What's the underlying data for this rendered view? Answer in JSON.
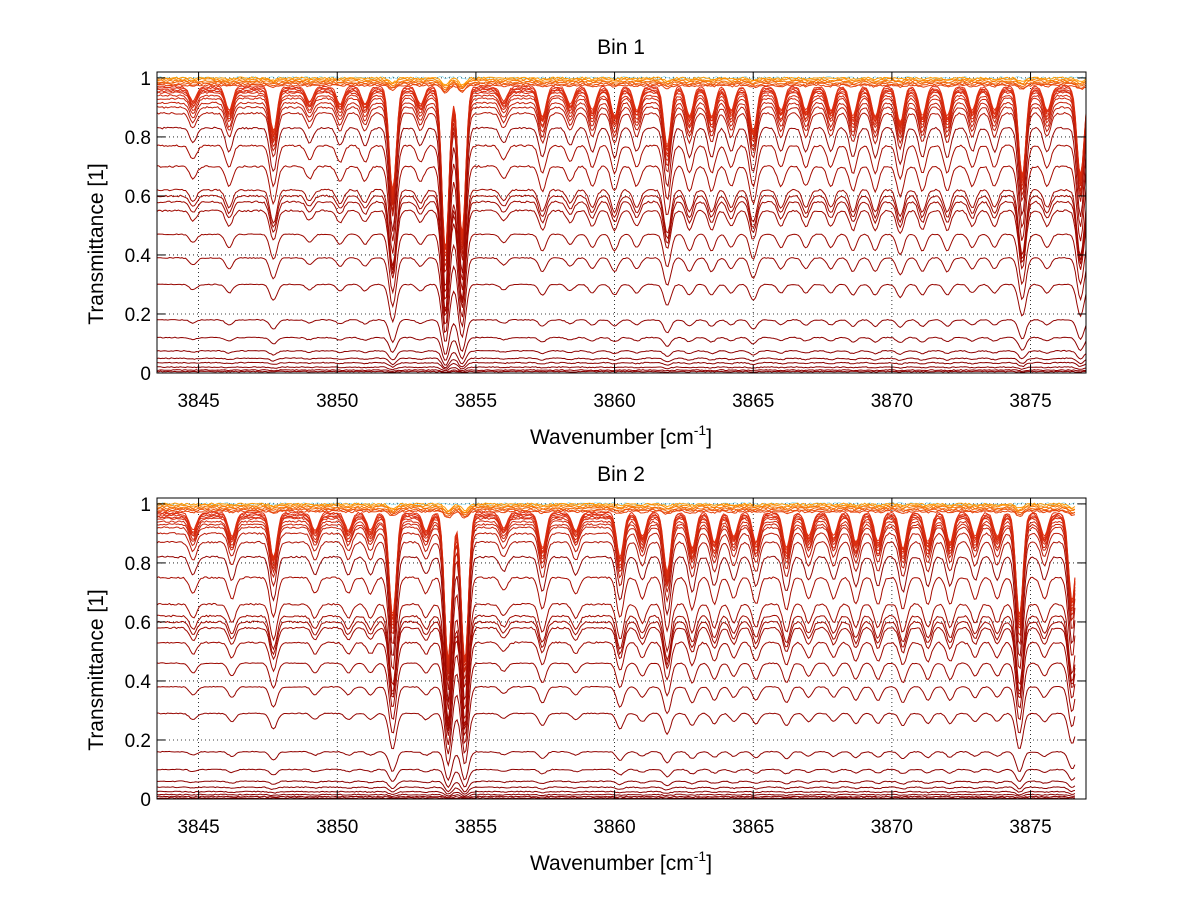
{
  "chart_data": [
    {
      "type": "line",
      "title": "Bin 1",
      "xlabel": "Wavenumber [cm",
      "xlabel_sup": "-1",
      "xlabel_end": "]",
      "ylabel": "Transmittance [1]",
      "xlim": [
        3843.5,
        3877
      ],
      "ylim": [
        0,
        1.02
      ],
      "xticks": [
        3845,
        3850,
        3855,
        3860,
        3865,
        3870,
        3875
      ],
      "xtick_labels": [
        "3845",
        "3850",
        "3855",
        "3860",
        "3865",
        "3870",
        "3875"
      ],
      "yticks": [
        0,
        0.2,
        0.4,
        0.6,
        0.8,
        1
      ],
      "ytick_labels": [
        "0",
        "0.2",
        "0.4",
        "0.6",
        "0.8",
        "1"
      ],
      "grid": "dotted",
      "legend": "none",
      "data_x_end": 3877,
      "series_baselines": [
        1.0,
        0.995,
        0.99,
        0.985,
        0.98,
        0.975,
        0.97,
        0.965,
        0.96,
        0.955,
        0.95,
        0.94,
        0.93,
        0.915,
        0.9,
        0.88,
        0.83,
        0.77,
        0.7,
        0.62,
        0.6,
        0.58,
        0.55,
        0.47,
        0.39,
        0.3,
        0.18,
        0.12,
        0.075,
        0.05,
        0.035,
        0.02,
        0.01,
        0.005
      ],
      "absorption_lines": [
        {
          "x": 3844.8,
          "depth": 0.05
        },
        {
          "x": 3846.1,
          "depth": 0.08
        },
        {
          "x": 3847.7,
          "depth": 0.15
        },
        {
          "x": 3849.0,
          "depth": 0.05
        },
        {
          "x": 3850.1,
          "depth": 0.06
        },
        {
          "x": 3851.0,
          "depth": 0.06
        },
        {
          "x": 3852.0,
          "depth": 0.35
        },
        {
          "x": 3853.0,
          "depth": 0.06
        },
        {
          "x": 3853.9,
          "depth": 0.55
        },
        {
          "x": 3854.5,
          "depth": 0.5
        },
        {
          "x": 3856.0,
          "depth": 0.05
        },
        {
          "x": 3857.4,
          "depth": 0.1
        },
        {
          "x": 3858.4,
          "depth": 0.06
        },
        {
          "x": 3859.2,
          "depth": 0.08
        },
        {
          "x": 3860.0,
          "depth": 0.1
        },
        {
          "x": 3860.8,
          "depth": 0.08
        },
        {
          "x": 3861.9,
          "depth": 0.2
        },
        {
          "x": 3862.7,
          "depth": 0.1
        },
        {
          "x": 3863.5,
          "depth": 0.1
        },
        {
          "x": 3864.2,
          "depth": 0.08
        },
        {
          "x": 3865.0,
          "depth": 0.15
        },
        {
          "x": 3866.0,
          "depth": 0.08
        },
        {
          "x": 3866.9,
          "depth": 0.08
        },
        {
          "x": 3867.8,
          "depth": 0.08
        },
        {
          "x": 3868.6,
          "depth": 0.1
        },
        {
          "x": 3869.4,
          "depth": 0.1
        },
        {
          "x": 3870.3,
          "depth": 0.12
        },
        {
          "x": 3871.1,
          "depth": 0.1
        },
        {
          "x": 3872.0,
          "depth": 0.1
        },
        {
          "x": 3872.9,
          "depth": 0.08
        },
        {
          "x": 3873.7,
          "depth": 0.08
        },
        {
          "x": 3874.7,
          "depth": 0.3
        },
        {
          "x": 3875.6,
          "depth": 0.08
        },
        {
          "x": 3876.8,
          "depth": 0.3
        }
      ],
      "colors": {
        "deep": "#8b0000",
        "mid": "#e03010",
        "light": "#ff9a00",
        "accent": "#00b4e0"
      }
    },
    {
      "type": "line",
      "title": "Bin 2",
      "xlabel": "Wavenumber [cm",
      "xlabel_sup": "-1",
      "xlabel_end": "]",
      "ylabel": "Transmittance [1]",
      "xlim": [
        3843.5,
        3877
      ],
      "ylim": [
        0,
        1.02
      ],
      "xticks": [
        3845,
        3850,
        3855,
        3860,
        3865,
        3870,
        3875
      ],
      "xtick_labels": [
        "3845",
        "3850",
        "3855",
        "3860",
        "3865",
        "3870",
        "3875"
      ],
      "yticks": [
        0,
        0.2,
        0.4,
        0.6,
        0.8,
        1
      ],
      "ytick_labels": [
        "0",
        "0.2",
        "0.4",
        "0.6",
        "0.8",
        "1"
      ],
      "grid": "dotted",
      "legend": "none",
      "data_x_end": 3876.6,
      "series_baselines": [
        1.0,
        0.995,
        0.99,
        0.985,
        0.98,
        0.975,
        0.97,
        0.965,
        0.96,
        0.955,
        0.95,
        0.94,
        0.93,
        0.92,
        0.9,
        0.87,
        0.82,
        0.75,
        0.66,
        0.62,
        0.6,
        0.58,
        0.53,
        0.46,
        0.38,
        0.29,
        0.16,
        0.1,
        0.06,
        0.04,
        0.025,
        0.015,
        0.008,
        0.003
      ],
      "absorption_lines": [
        {
          "x": 3844.8,
          "depth": 0.06
        },
        {
          "x": 3846.2,
          "depth": 0.08
        },
        {
          "x": 3847.7,
          "depth": 0.15
        },
        {
          "x": 3849.2,
          "depth": 0.06
        },
        {
          "x": 3850.4,
          "depth": 0.06
        },
        {
          "x": 3851.2,
          "depth": 0.06
        },
        {
          "x": 3852.0,
          "depth": 0.35
        },
        {
          "x": 3853.2,
          "depth": 0.06
        },
        {
          "x": 3854.0,
          "depth": 0.5
        },
        {
          "x": 3854.6,
          "depth": 0.5
        },
        {
          "x": 3856.0,
          "depth": 0.05
        },
        {
          "x": 3857.4,
          "depth": 0.12
        },
        {
          "x": 3858.6,
          "depth": 0.06
        },
        {
          "x": 3860.2,
          "depth": 0.15
        },
        {
          "x": 3861.0,
          "depth": 0.08
        },
        {
          "x": 3861.9,
          "depth": 0.2
        },
        {
          "x": 3862.8,
          "depth": 0.12
        },
        {
          "x": 3863.6,
          "depth": 0.1
        },
        {
          "x": 3864.3,
          "depth": 0.08
        },
        {
          "x": 3865.1,
          "depth": 0.1
        },
        {
          "x": 3866.2,
          "depth": 0.12
        },
        {
          "x": 3867.0,
          "depth": 0.08
        },
        {
          "x": 3867.9,
          "depth": 0.08
        },
        {
          "x": 3868.7,
          "depth": 0.1
        },
        {
          "x": 3869.5,
          "depth": 0.1
        },
        {
          "x": 3870.4,
          "depth": 0.12
        },
        {
          "x": 3871.3,
          "depth": 0.1
        },
        {
          "x": 3872.1,
          "depth": 0.1
        },
        {
          "x": 3873.0,
          "depth": 0.08
        },
        {
          "x": 3873.8,
          "depth": 0.08
        },
        {
          "x": 3874.6,
          "depth": 0.35
        },
        {
          "x": 3875.5,
          "depth": 0.08
        },
        {
          "x": 3876.5,
          "depth": 0.3
        }
      ],
      "colors": {
        "deep": "#8b0000",
        "mid": "#e03010",
        "light": "#ff9a00",
        "accent": "#00b4e0"
      }
    }
  ]
}
